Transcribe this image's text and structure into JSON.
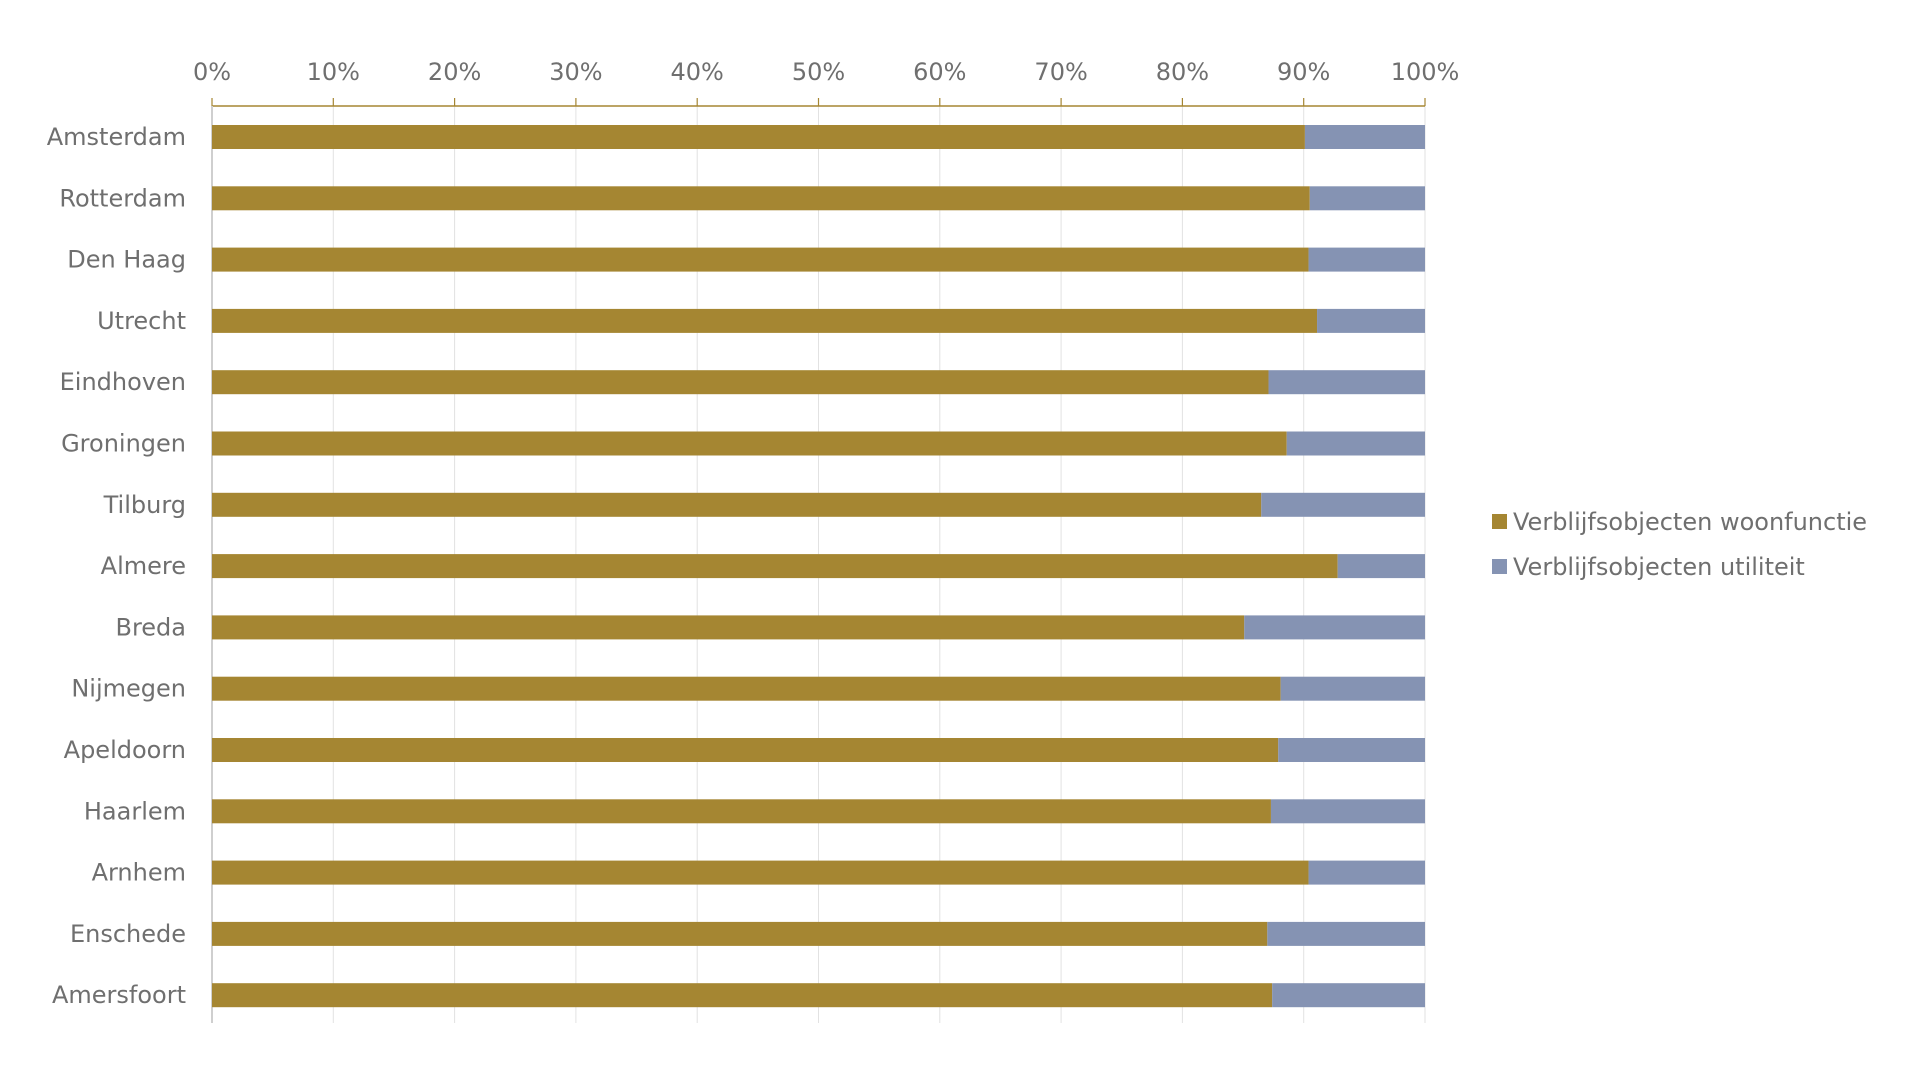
{
  "chart_data": {
    "type": "bar",
    "orientation": "horizontal",
    "stacked": "percent",
    "categories": [
      "Amsterdam",
      "Rotterdam",
      "Den Haag",
      "Utrecht",
      "Eindhoven",
      "Groningen",
      "Tilburg",
      "Almere",
      "Breda",
      "Nijmegen",
      "Apeldoorn",
      "Haarlem",
      "Arnhem",
      "Enschede",
      "Amersfoort"
    ],
    "series": [
      {
        "name": "Verblijfsobjecten woonfunctie",
        "color": "#a58632",
        "values": [
          90.1,
          90.5,
          90.4,
          91.1,
          87.1,
          88.6,
          86.5,
          92.8,
          85.1,
          88.1,
          87.9,
          87.3,
          90.4,
          87.0,
          87.4
        ]
      },
      {
        "name": "Verblijfsobjecten utiliteit",
        "color": "#8593b3",
        "values": [
          9.9,
          9.5,
          9.6,
          8.9,
          12.9,
          11.4,
          13.5,
          7.2,
          14.9,
          11.9,
          12.1,
          12.7,
          9.6,
          13.0,
          12.6
        ]
      }
    ],
    "xlim": [
      0,
      100
    ],
    "xticks": [
      "0%",
      "10%",
      "20%",
      "30%",
      "40%",
      "50%",
      "60%",
      "70%",
      "80%",
      "90%",
      "100%"
    ],
    "x_axis_position": "top",
    "grid": true,
    "legend_position": "right"
  }
}
